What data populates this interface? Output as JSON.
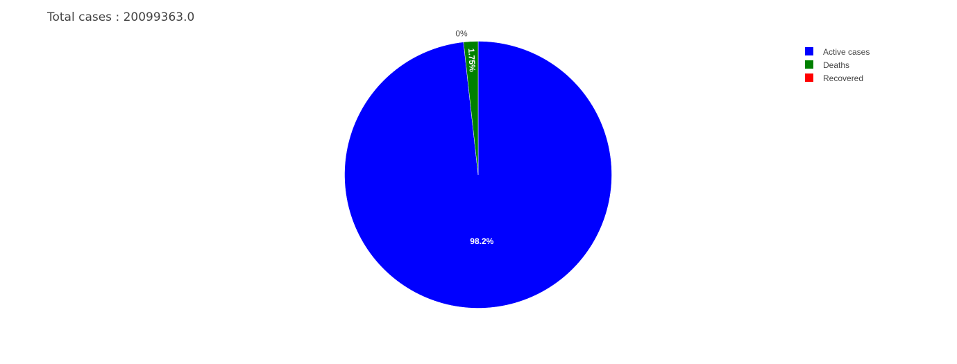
{
  "chart_data": {
    "type": "pie",
    "title": "Total cases : 20099363.0",
    "labels": [
      "Active cases",
      "Deaths",
      "Recovered"
    ],
    "values": [
      98.25,
      1.75,
      0
    ],
    "text_labels": [
      "98.2%",
      "1.75%",
      "0%"
    ],
    "colors": [
      "#0000ff",
      "#008000",
      "#ff0000"
    ],
    "legend_position": "top-right",
    "sort_direction": "clockwise"
  }
}
